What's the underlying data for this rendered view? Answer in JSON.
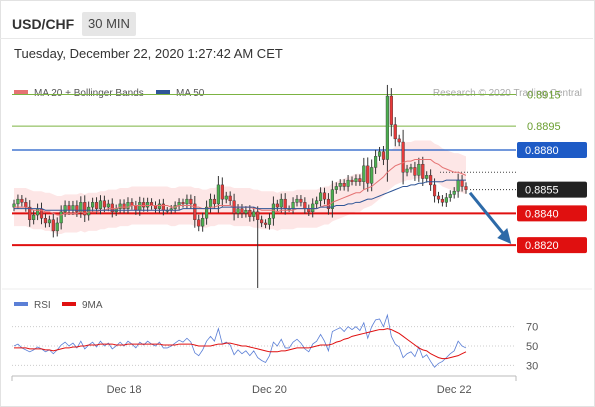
{
  "header": {
    "symbol": "USD/CHF",
    "timeframe": "30 MIN",
    "datetime": "Tuesday, December 22, 2020 1:27:42 AM CET"
  },
  "watermark": "Research © 2020 Trading Central",
  "colors": {
    "candle_up": "#4caf50",
    "candle_down": "#e63a3a",
    "ma20": "#e57373",
    "bollinger_fill": "#fde3e3",
    "ma50": "#2f5597",
    "resistance_green": "#7cb342",
    "pivot_blue": "#1e5bc6",
    "support_red": "#e01010",
    "forecast_arrow": "#2d6aa8",
    "rsi": "#5b7fd6",
    "rsi_ma": "#e01010"
  },
  "chart_data": [
    {
      "type": "candlestick",
      "title": "",
      "legend": [
        {
          "name": "MA 20 + Bollinger Bands",
          "color": "#e57373"
        },
        {
          "name": "MA 50",
          "color": "#2f5597"
        }
      ],
      "ylim": [
        0.8793,
        0.8926
      ],
      "x_ticks": [
        {
          "label": "Dec 18",
          "index": 28
        },
        {
          "label": "Dec 20",
          "index": 65
        },
        {
          "label": "Dec 22",
          "index": 112
        }
      ],
      "levels": [
        {
          "value": 0.8915,
          "label": "0.8915",
          "kind": "resistance"
        },
        {
          "value": 0.8895,
          "label": "0.8895",
          "kind": "resistance"
        },
        {
          "value": 0.888,
          "label": "0.8880",
          "kind": "pivot"
        },
        {
          "value": 0.8855,
          "label": "0.8855",
          "kind": "last"
        },
        {
          "value": 0.884,
          "label": "0.8840",
          "kind": "support"
        },
        {
          "value": 0.882,
          "label": "0.8820",
          "kind": "support"
        }
      ],
      "forecast": {
        "from_index": 115,
        "from_value": 0.8853,
        "to_index": 126,
        "to_value": 0.8822
      },
      "close": [
        0.8846,
        0.8849,
        0.8847,
        0.8844,
        0.8836,
        0.8839,
        0.8843,
        0.8837,
        0.8834,
        0.8836,
        0.8829,
        0.8834,
        0.8841,
        0.8845,
        0.8842,
        0.8845,
        0.8841,
        0.8847,
        0.8839,
        0.8844,
        0.8847,
        0.8843,
        0.8848,
        0.8844,
        0.8846,
        0.8841,
        0.8843,
        0.8846,
        0.8843,
        0.8847,
        0.8845,
        0.8842,
        0.8847,
        0.8844,
        0.8847,
        0.8845,
        0.8843,
        0.8846,
        0.8842,
        0.8842,
        0.8843,
        0.8845,
        0.8847,
        0.8846,
        0.8849,
        0.8846,
        0.8836,
        0.8832,
        0.8837,
        0.8844,
        0.8849,
        0.8846,
        0.8858,
        0.8849,
        0.8851,
        0.8848,
        0.884,
        0.8843,
        0.884,
        0.8842,
        0.8838,
        0.8841,
        0.8836,
        0.8834,
        0.8833,
        0.8837,
        0.8846,
        0.8844,
        0.8849,
        0.8843,
        0.8843,
        0.8847,
        0.8849,
        0.8847,
        0.8843,
        0.8841,
        0.8846,
        0.8848,
        0.8853,
        0.8849,
        0.8843,
        0.8855,
        0.8857,
        0.8859,
        0.8857,
        0.8861,
        0.886,
        0.8862,
        0.886,
        0.887,
        0.8859,
        0.8869,
        0.8876,
        0.8879,
        0.8874,
        0.8914,
        0.8896,
        0.8887,
        0.8885,
        0.8866,
        0.8868,
        0.8869,
        0.8864,
        0.8871,
        0.8862,
        0.8864,
        0.8858,
        0.8851,
        0.8849,
        0.8847,
        0.885,
        0.8852,
        0.8854,
        0.8861,
        0.8857,
        0.8855
      ],
      "ma20": [
        0.8844,
        0.8844,
        0.8844,
        0.8844,
        0.8843,
        0.8842,
        0.8842,
        0.8842,
        0.8841,
        0.8841,
        0.884,
        0.8839,
        0.8839,
        0.884,
        0.884,
        0.884,
        0.884,
        0.8841,
        0.884,
        0.8841,
        0.8841,
        0.8841,
        0.8842,
        0.8842,
        0.8843,
        0.8843,
        0.8843,
        0.8844,
        0.8844,
        0.8844,
        0.8845,
        0.8845,
        0.8845,
        0.8845,
        0.8845,
        0.8845,
        0.8845,
        0.8845,
        0.8845,
        0.8845,
        0.8844,
        0.8844,
        0.8845,
        0.8845,
        0.8845,
        0.8845,
        0.8844,
        0.8844,
        0.8843,
        0.8843,
        0.8844,
        0.8844,
        0.8845,
        0.8845,
        0.8845,
        0.8845,
        0.8844,
        0.8844,
        0.8844,
        0.8844,
        0.8844,
        0.8843,
        0.8843,
        0.8842,
        0.8842,
        0.8842,
        0.8842,
        0.8841,
        0.8842,
        0.8842,
        0.8842,
        0.8842,
        0.8843,
        0.8843,
        0.8843,
        0.8843,
        0.8843,
        0.8843,
        0.8844,
        0.8845,
        0.8845,
        0.8847,
        0.8848,
        0.8849,
        0.885,
        0.8851,
        0.8852,
        0.8853,
        0.8853,
        0.8855,
        0.8856,
        0.8857,
        0.8859,
        0.8861,
        0.8863,
        0.8866,
        0.8868,
        0.887,
        0.8871,
        0.8872,
        0.8873,
        0.8873,
        0.8874,
        0.8874,
        0.8874,
        0.8874,
        0.8874,
        0.8872,
        0.8871,
        0.8869,
        0.8868,
        0.8867,
        0.8866,
        0.8866,
        0.8865,
        0.8864
      ],
      "ma50": [
        0.8843,
        0.8843,
        0.8843,
        0.8843,
        0.8843,
        0.8843,
        0.8843,
        0.8843,
        0.8842,
        0.8842,
        0.8842,
        0.8842,
        0.8842,
        0.8842,
        0.8842,
        0.8842,
        0.8842,
        0.8842,
        0.8842,
        0.8842,
        0.8842,
        0.8842,
        0.8842,
        0.8842,
        0.8842,
        0.8842,
        0.8842,
        0.8842,
        0.8842,
        0.8842,
        0.8842,
        0.8842,
        0.8842,
        0.8842,
        0.8842,
        0.8842,
        0.8842,
        0.8842,
        0.8842,
        0.8842,
        0.8842,
        0.8842,
        0.8842,
        0.8843,
        0.8843,
        0.8843,
        0.8843,
        0.8843,
        0.8843,
        0.8843,
        0.8843,
        0.8843,
        0.8843,
        0.8844,
        0.8844,
        0.8844,
        0.8844,
        0.8844,
        0.8844,
        0.8844,
        0.8844,
        0.8844,
        0.8843,
        0.8843,
        0.8843,
        0.8843,
        0.8843,
        0.8843,
        0.8843,
        0.8843,
        0.8843,
        0.8843,
        0.8843,
        0.8843,
        0.8843,
        0.8843,
        0.8843,
        0.8843,
        0.8844,
        0.8844,
        0.8844,
        0.8844,
        0.8845,
        0.8845,
        0.8845,
        0.8846,
        0.8846,
        0.8847,
        0.8847,
        0.8848,
        0.8849,
        0.8849,
        0.885,
        0.8851,
        0.8852,
        0.8853,
        0.8854,
        0.8855,
        0.8856,
        0.8857,
        0.8857,
        0.8858,
        0.8858,
        0.8859,
        0.8859,
        0.886,
        0.886,
        0.886,
        0.886,
        0.886,
        0.8861,
        0.8861,
        0.8861,
        0.8861,
        0.8861,
        0.8861
      ],
      "band_width": 0.0012
    },
    {
      "type": "line",
      "title": "",
      "legend": [
        {
          "name": "RSI",
          "color": "#5b7fd6"
        },
        {
          "name": "9MA",
          "color": "#e01010"
        }
      ],
      "ylim": [
        20,
        80
      ],
      "y_ticks": [
        70,
        50,
        30
      ],
      "rsi": [
        50,
        52,
        48,
        46,
        44,
        46,
        49,
        47,
        44,
        46,
        42,
        46,
        51,
        54,
        50,
        53,
        48,
        55,
        47,
        51,
        54,
        49,
        55,
        50,
        53,
        47,
        50,
        54,
        50,
        55,
        52,
        48,
        54,
        51,
        55,
        52,
        50,
        54,
        48,
        48,
        50,
        53,
        56,
        54,
        58,
        54,
        43,
        40,
        46,
        55,
        60,
        55,
        68,
        52,
        54,
        51,
        41,
        46,
        42,
        45,
        40,
        45,
        38,
        35,
        33,
        40,
        54,
        50,
        57,
        48,
        48,
        54,
        57,
        53,
        47,
        44,
        52,
        55,
        62,
        55,
        45,
        65,
        67,
        69,
        65,
        70,
        67,
        70,
        66,
        74,
        58,
        70,
        77,
        78,
        70,
        82,
        60,
        52,
        49,
        38,
        42,
        44,
        39,
        49,
        38,
        41,
        34,
        28,
        32,
        34,
        38,
        42,
        45,
        55,
        50,
        48
      ],
      "rsi_ma": [
        48,
        48,
        48,
        48,
        47,
        47,
        47,
        47,
        46,
        46,
        45,
        46,
        47,
        48,
        48,
        49,
        49,
        50,
        50,
        51,
        51,
        51,
        52,
        52,
        52,
        52,
        51,
        51,
        51,
        52,
        52,
        52,
        52,
        52,
        52,
        52,
        52,
        52,
        51,
        51,
        51,
        51,
        52,
        52,
        52,
        52,
        51,
        50,
        50,
        50,
        50,
        51,
        52,
        52,
        53,
        53,
        52,
        51,
        50,
        50,
        49,
        48,
        47,
        46,
        45,
        44,
        44,
        44,
        45,
        45,
        46,
        47,
        48,
        48,
        48,
        48,
        49,
        50,
        51,
        51,
        51,
        52,
        54,
        55,
        57,
        58,
        60,
        61,
        62,
        63,
        64,
        65,
        66,
        67,
        67,
        68,
        67,
        65,
        63,
        60,
        57,
        54,
        51,
        48,
        46,
        45,
        42,
        40,
        38,
        37,
        37,
        38,
        39,
        40,
        42,
        44
      ]
    }
  ]
}
